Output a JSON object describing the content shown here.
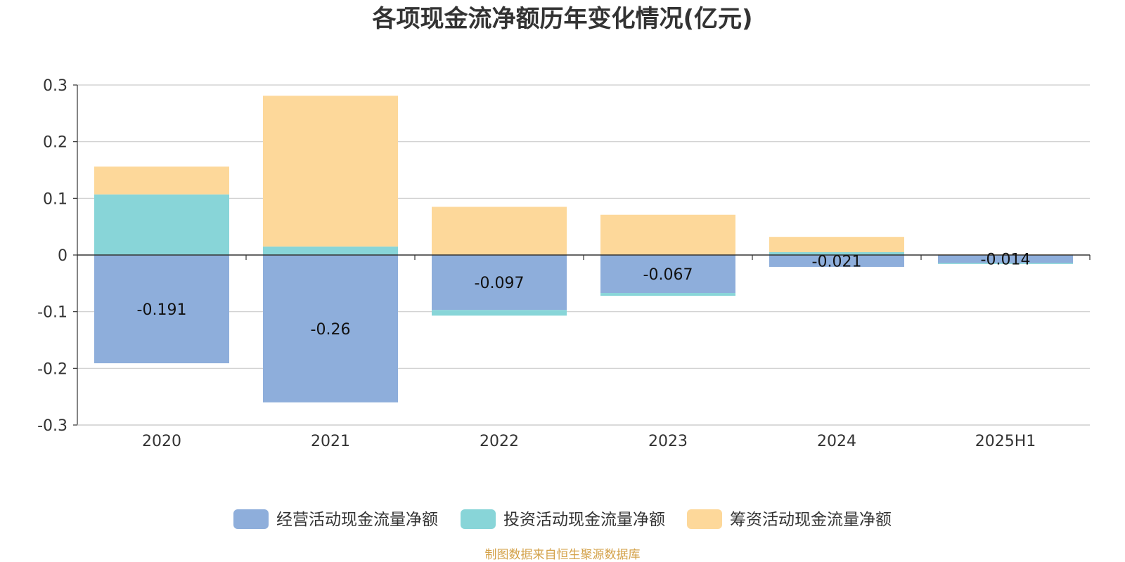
{
  "chart_data": {
    "type": "bar",
    "stacked": true,
    "title": "各项现金流净额历年变化情况(亿元)",
    "categories": [
      "2020",
      "2021",
      "2022",
      "2023",
      "2024",
      "2025H1"
    ],
    "ylim": [
      -0.3,
      0.3
    ],
    "yticks": [
      0.3,
      0.2,
      0.1,
      0,
      -0.1,
      -0.2,
      -0.3
    ],
    "ytick_labels": [
      "0.3",
      "0.2",
      "0.1",
      "0",
      "-0.1",
      "-0.2",
      "-0.3"
    ],
    "grid": true,
    "legend_position": "bottom",
    "series": [
      {
        "name": "经营活动现金流量净额",
        "color": "#8eaedb",
        "values": [
          -0.191,
          -0.26,
          -0.097,
          -0.067,
          -0.021,
          -0.014
        ]
      },
      {
        "name": "投资活动现金流量净额",
        "color": "#88d5d8",
        "values": [
          0.107,
          0.015,
          -0.01,
          -0.005,
          0.005,
          -0.002
        ]
      },
      {
        "name": "筹资活动现金流量净额",
        "color": "#fdd89a",
        "values": [
          0.049,
          0.266,
          0.085,
          0.071,
          0.027,
          0.001
        ]
      }
    ],
    "data_labels": [
      "-0.191",
      "-0.26",
      "-0.097",
      "-0.067",
      "-0.021",
      "-0.014"
    ],
    "source": "制图数据来自恒生聚源数据库"
  }
}
